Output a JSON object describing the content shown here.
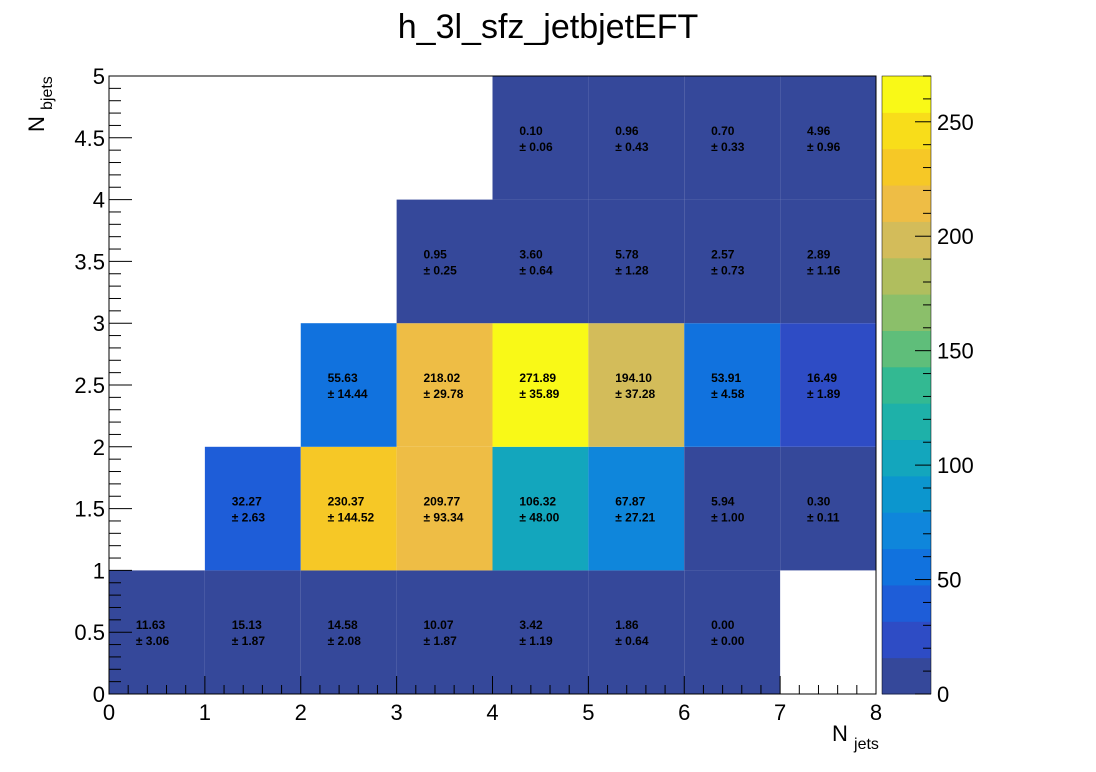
{
  "chart_data": {
    "type": "heatmap",
    "title": "h_3l_sfz_jetbjetEFT",
    "xlabel": {
      "main": "N",
      "sub": "jets"
    },
    "ylabel": {
      "main": "N",
      "sub": "bjets"
    },
    "xlim": [
      0,
      8
    ],
    "ylim": [
      0,
      5
    ],
    "x_bin_edges": [
      0,
      1,
      2,
      3,
      4,
      5,
      6,
      7,
      8
    ],
    "y_bin_edges": [
      0,
      1,
      2,
      3,
      4,
      5
    ],
    "x_ticks": [
      "0",
      "1",
      "2",
      "3",
      "4",
      "5",
      "6",
      "7",
      "8"
    ],
    "y_ticks": [
      "0",
      "0.5",
      "1",
      "1.5",
      "2",
      "2.5",
      "3",
      "3.5",
      "4",
      "4.5",
      "5"
    ],
    "colorbar": {
      "min": 0,
      "max": 270,
      "ticks": [
        "0",
        "50",
        "100",
        "150",
        "200",
        "250"
      ]
    },
    "palette": [
      "#35489A",
      "#2E4CC5",
      "#1E5DD8",
      "#1172DE",
      "#0F86DB",
      "#0C96CE",
      "#13A6BD",
      "#1EB1A9",
      "#33B992",
      "#5FBE7A",
      "#8BBF6A",
      "#B0BE5E",
      "#D3BC5A",
      "#EEBD45",
      "#F6C826",
      "#F8DD1A",
      "#F9F917"
    ],
    "cells": [
      {
        "x": 0,
        "y": 0,
        "value": 11.63,
        "label": "11.63",
        "error": "± 3.06"
      },
      {
        "x": 1,
        "y": 0,
        "value": 15.13,
        "label": "15.13",
        "error": "± 1.87"
      },
      {
        "x": 2,
        "y": 0,
        "value": 14.58,
        "label": "14.58",
        "error": "± 2.08"
      },
      {
        "x": 3,
        "y": 0,
        "value": 10.07,
        "label": "10.07",
        "error": "± 1.87"
      },
      {
        "x": 4,
        "y": 0,
        "value": 3.42,
        "label": "3.42",
        "error": "± 1.19"
      },
      {
        "x": 5,
        "y": 0,
        "value": 1.86,
        "label": "1.86",
        "error": "± 0.64"
      },
      {
        "x": 6,
        "y": 0,
        "value": 0.0,
        "label": "0.00",
        "error": "± 0.00"
      },
      {
        "x": 1,
        "y": 1,
        "value": 32.27,
        "label": "32.27",
        "error": "± 2.63"
      },
      {
        "x": 2,
        "y": 1,
        "value": 230.37,
        "label": "230.37",
        "error": "± 144.52"
      },
      {
        "x": 3,
        "y": 1,
        "value": 209.77,
        "label": "209.77",
        "error": "± 93.34"
      },
      {
        "x": 4,
        "y": 1,
        "value": 106.32,
        "label": "106.32",
        "error": "± 48.00"
      },
      {
        "x": 5,
        "y": 1,
        "value": 67.87,
        "label": "67.87",
        "error": "± 27.21"
      },
      {
        "x": 6,
        "y": 1,
        "value": 5.94,
        "label": "5.94",
        "error": "± 1.00"
      },
      {
        "x": 7,
        "y": 1,
        "value": 0.3,
        "label": "0.30",
        "error": "± 0.11"
      },
      {
        "x": 2,
        "y": 2,
        "value": 55.63,
        "label": "55.63",
        "error": "± 14.44"
      },
      {
        "x": 3,
        "y": 2,
        "value": 218.02,
        "label": "218.02",
        "error": "± 29.78"
      },
      {
        "x": 4,
        "y": 2,
        "value": 271.89,
        "label": "271.89",
        "error": "± 35.89"
      },
      {
        "x": 5,
        "y": 2,
        "value": 194.1,
        "label": "194.10",
        "error": "± 37.28"
      },
      {
        "x": 6,
        "y": 2,
        "value": 53.91,
        "label": "53.91",
        "error": "± 4.58"
      },
      {
        "x": 7,
        "y": 2,
        "value": 16.49,
        "label": "16.49",
        "error": "± 1.89"
      },
      {
        "x": 3,
        "y": 3,
        "value": 0.95,
        "label": "0.95",
        "error": "± 0.25"
      },
      {
        "x": 4,
        "y": 3,
        "value": 3.6,
        "label": "3.60",
        "error": "± 0.64"
      },
      {
        "x": 5,
        "y": 3,
        "value": 5.78,
        "label": "5.78",
        "error": "± 1.28"
      },
      {
        "x": 6,
        "y": 3,
        "value": 2.57,
        "label": "2.57",
        "error": "± 0.73"
      },
      {
        "x": 7,
        "y": 3,
        "value": 2.89,
        "label": "2.89",
        "error": "± 1.16"
      },
      {
        "x": 4,
        "y": 4,
        "value": 0.1,
        "label": "0.10",
        "error": "± 0.06"
      },
      {
        "x": 5,
        "y": 4,
        "value": 0.96,
        "label": "0.96",
        "error": "± 0.43"
      },
      {
        "x": 6,
        "y": 4,
        "value": 0.7,
        "label": "0.70",
        "error": "± 0.33"
      },
      {
        "x": 7,
        "y": 4,
        "value": 4.96,
        "label": "4.96",
        "error": "± 0.96"
      }
    ]
  }
}
